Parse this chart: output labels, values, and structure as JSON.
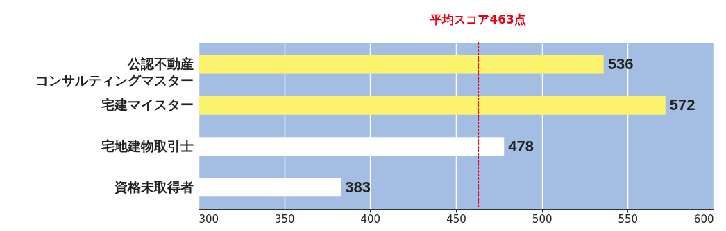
{
  "chart_data": {
    "type": "bar",
    "orientation": "horizontal",
    "categories": [
      "公認不動産コンサルティングマスター",
      "宅建マイスター",
      "宅地建物取引士",
      "資格未取得者"
    ],
    "values": [
      536,
      572,
      478,
      383
    ],
    "colors": [
      "#fbf36b",
      "#fbf36b",
      "#ffffff",
      "#ffffff"
    ],
    "xlim": [
      300,
      600
    ],
    "xticks": [
      300,
      350,
      400,
      450,
      500,
      550,
      600
    ],
    "grid": "x",
    "data_labels": true,
    "ref_lines": [
      {
        "axis": "x",
        "value": 463,
        "label": "平均スコア463点",
        "color": "#e60012",
        "line_style": "dotted"
      }
    ]
  }
}
